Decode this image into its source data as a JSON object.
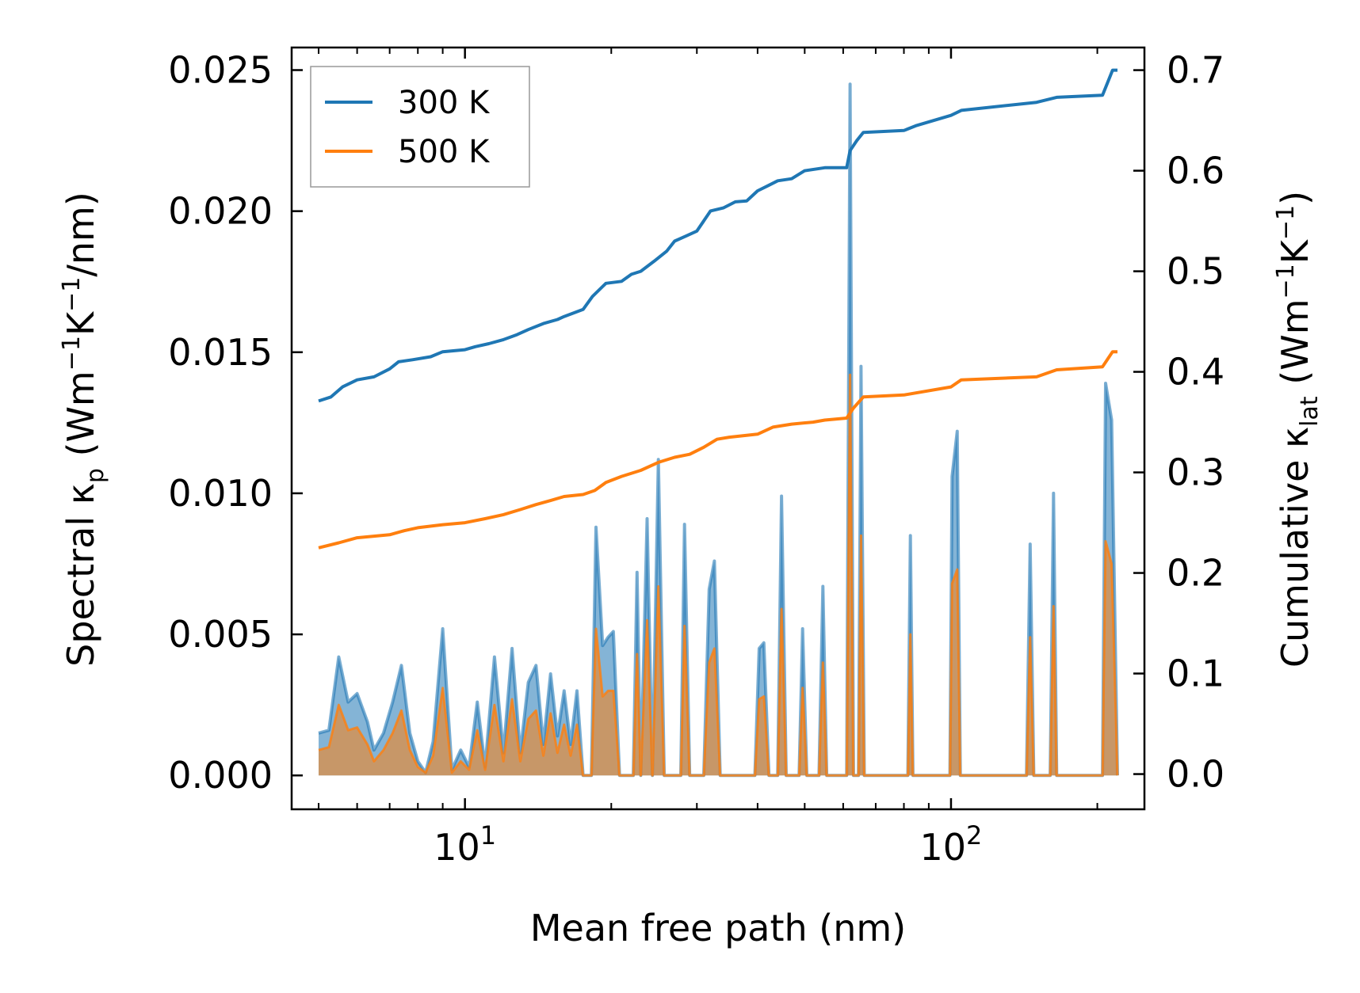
{
  "chart_data": {
    "type": "line",
    "xlabel": "Mean free path (nm)",
    "x_scale": "log",
    "xlim": [
      4.4,
      250
    ],
    "x_major_ticks": [
      {
        "value": 10,
        "base": "10",
        "exp": "1"
      },
      {
        "value": 100,
        "base": "10",
        "exp": "2"
      }
    ],
    "ylabel_left": {
      "main": "Spectral κ",
      "sub": "p",
      "rest1": " (Wm",
      "sup1": "−1",
      "rest2": "K",
      "sup2": "−1",
      "rest3": "/nm)"
    },
    "ylim_left": [
      -0.0012,
      0.0258
    ],
    "yticks_left": [
      "0.000",
      "0.005",
      "0.010",
      "0.015",
      "0.020",
      "0.025"
    ],
    "ylabel_right": {
      "main": "Cumulative κ",
      "sub": "lat",
      "rest1": " (Wm",
      "sup1": "−1",
      "rest2": "K",
      "sup2": "−1",
      "rest3": ")"
    },
    "ylim_right": [
      -0.035,
      0.7225
    ],
    "yticks_right": [
      "0.0",
      "0.1",
      "0.2",
      "0.3",
      "0.4",
      "0.5",
      "0.6",
      "0.7"
    ],
    "legend": {
      "position": "top-left",
      "entries": [
        {
          "label": "300 K",
          "color": "#1f77b4"
        },
        {
          "label": "500 K",
          "color": "#ff7f0e"
        }
      ]
    },
    "series": [
      {
        "name": "300 K",
        "color": "#1f77b4",
        "cumulative": [
          [
            5.0,
            0.371
          ],
          [
            5.3,
            0.375
          ],
          [
            5.6,
            0.385
          ],
          [
            6.0,
            0.392
          ],
          [
            6.5,
            0.395
          ],
          [
            7.0,
            0.403
          ],
          [
            7.3,
            0.41
          ],
          [
            7.8,
            0.412
          ],
          [
            8.5,
            0.415
          ],
          [
            9.0,
            0.42
          ],
          [
            10.0,
            0.422
          ],
          [
            10.5,
            0.425
          ],
          [
            11.2,
            0.428
          ],
          [
            12.0,
            0.432
          ],
          [
            12.8,
            0.437
          ],
          [
            13.5,
            0.442
          ],
          [
            14.5,
            0.448
          ],
          [
            15.5,
            0.452
          ],
          [
            16.0,
            0.455
          ],
          [
            17.5,
            0.462
          ],
          [
            18.3,
            0.475
          ],
          [
            19.5,
            0.488
          ],
          [
            21.0,
            0.49
          ],
          [
            22.0,
            0.497
          ],
          [
            23.0,
            0.5
          ],
          [
            24.5,
            0.51
          ],
          [
            26.0,
            0.52
          ],
          [
            27.0,
            0.53
          ],
          [
            28.5,
            0.535
          ],
          [
            30.0,
            0.54
          ],
          [
            32.0,
            0.56
          ],
          [
            34.0,
            0.563
          ],
          [
            36.0,
            0.569
          ],
          [
            38.0,
            0.57
          ],
          [
            40.0,
            0.58
          ],
          [
            42.0,
            0.585
          ],
          [
            44.0,
            0.59
          ],
          [
            47.0,
            0.592
          ],
          [
            50.0,
            0.6
          ],
          [
            55.0,
            0.603
          ],
          [
            61.0,
            0.603
          ],
          [
            62.0,
            0.62
          ],
          [
            64.0,
            0.63
          ],
          [
            66.0,
            0.638
          ],
          [
            80.0,
            0.64
          ],
          [
            85.0,
            0.645
          ],
          [
            100.0,
            0.655
          ],
          [
            105.0,
            0.66
          ],
          [
            150.0,
            0.668
          ],
          [
            165.0,
            0.673
          ],
          [
            205.0,
            0.675
          ],
          [
            215.0,
            0.7
          ],
          [
            220.0,
            0.7
          ]
        ]
      },
      {
        "name": "500 K",
        "color": "#ff7f0e",
        "cumulative": [
          [
            5.0,
            0.225
          ],
          [
            5.5,
            0.23
          ],
          [
            6.0,
            0.235
          ],
          [
            7.0,
            0.238
          ],
          [
            7.5,
            0.242
          ],
          [
            8.0,
            0.245
          ],
          [
            9.0,
            0.248
          ],
          [
            10.0,
            0.25
          ],
          [
            11.0,
            0.254
          ],
          [
            12.0,
            0.258
          ],
          [
            13.0,
            0.263
          ],
          [
            14.0,
            0.268
          ],
          [
            15.0,
            0.272
          ],
          [
            16.0,
            0.276
          ],
          [
            17.5,
            0.278
          ],
          [
            18.5,
            0.282
          ],
          [
            19.5,
            0.29
          ],
          [
            21.0,
            0.296
          ],
          [
            23.0,
            0.302
          ],
          [
            25.0,
            0.31
          ],
          [
            27.0,
            0.315
          ],
          [
            29.0,
            0.318
          ],
          [
            31.0,
            0.325
          ],
          [
            33.0,
            0.333
          ],
          [
            35.0,
            0.335
          ],
          [
            40.0,
            0.338
          ],
          [
            43.0,
            0.345
          ],
          [
            47.0,
            0.348
          ],
          [
            52.0,
            0.35
          ],
          [
            55.0,
            0.352
          ],
          [
            61.0,
            0.354
          ],
          [
            63.0,
            0.364
          ],
          [
            66.0,
            0.375
          ],
          [
            80.0,
            0.377
          ],
          [
            100.0,
            0.385
          ],
          [
            105.0,
            0.392
          ],
          [
            150.0,
            0.395
          ],
          [
            165.0,
            0.402
          ],
          [
            205.0,
            0.405
          ],
          [
            215.0,
            0.42
          ],
          [
            220.0,
            0.42
          ]
        ]
      }
    ],
    "spectral": [
      [
        5.0,
        0.0015,
        0.0009
      ],
      [
        5.25,
        0.0016,
        0.001
      ],
      [
        5.5,
        0.0042,
        0.0025
      ],
      [
        5.75,
        0.0026,
        0.0016
      ],
      [
        6.0,
        0.0029,
        0.0017
      ],
      [
        6.3,
        0.0019,
        0.0011
      ],
      [
        6.5,
        0.0009,
        0.0005
      ],
      [
        6.8,
        0.0015,
        0.0009
      ],
      [
        7.1,
        0.0026,
        0.0015
      ],
      [
        7.4,
        0.0039,
        0.0023
      ],
      [
        7.7,
        0.0015,
        0.0009
      ],
      [
        8.0,
        0.0005,
        0.0003
      ],
      [
        8.3,
        0.0001,
        0.0001
      ],
      [
        8.6,
        0.0012,
        0.0007
      ],
      [
        9.0,
        0.0052,
        0.0031
      ],
      [
        9.4,
        0.0002,
        0.0001
      ],
      [
        9.8,
        0.0009,
        0.0005
      ],
      [
        10.2,
        0.0003,
        0.0002
      ],
      [
        10.6,
        0.0026,
        0.0016
      ],
      [
        11.0,
        0.0003,
        0.0002
      ],
      [
        11.5,
        0.0042,
        0.0025
      ],
      [
        12.0,
        0.0008,
        0.0005
      ],
      [
        12.5,
        0.0045,
        0.0027
      ],
      [
        13.0,
        0.0008,
        0.0005
      ],
      [
        13.5,
        0.0033,
        0.002
      ],
      [
        14.0,
        0.0039,
        0.0023
      ],
      [
        14.5,
        0.0011,
        0.0007
      ],
      [
        15.0,
        0.0036,
        0.0022
      ],
      [
        15.5,
        0.0014,
        0.0008
      ],
      [
        16.0,
        0.003,
        0.0018
      ],
      [
        16.5,
        0.0011,
        0.0007
      ],
      [
        17.0,
        0.003,
        0.0018
      ],
      [
        17.5,
        0.0,
        0.0
      ],
      [
        18.2,
        0.0,
        0.0
      ],
      [
        18.6,
        0.0088,
        0.0052
      ],
      [
        19.2,
        0.0046,
        0.0028
      ],
      [
        19.7,
        0.0049,
        0.003
      ],
      [
        20.2,
        0.0051,
        0.003
      ],
      [
        20.8,
        0.0,
        0.0
      ],
      [
        22.2,
        0.0,
        0.0
      ],
      [
        22.6,
        0.0072,
        0.0043
      ],
      [
        23.0,
        0.0,
        0.0
      ],
      [
        23.7,
        0.0091,
        0.0055
      ],
      [
        24.3,
        0.0,
        0.0
      ],
      [
        25.0,
        0.0112,
        0.0067
      ],
      [
        25.7,
        0.0,
        0.0
      ],
      [
        27.8,
        0.0,
        0.0
      ],
      [
        28.3,
        0.0089,
        0.0053
      ],
      [
        29.0,
        0.0,
        0.0
      ],
      [
        31.0,
        0.0,
        0.0
      ],
      [
        31.8,
        0.0066,
        0.004
      ],
      [
        32.6,
        0.0076,
        0.0045
      ],
      [
        33.5,
        0.0,
        0.0
      ],
      [
        39.5,
        0.0,
        0.0
      ],
      [
        40.3,
        0.0045,
        0.0027
      ],
      [
        41.2,
        0.0047,
        0.0028
      ],
      [
        42.2,
        0.0,
        0.0
      ],
      [
        44.0,
        0.0,
        0.0
      ],
      [
        44.8,
        0.0099,
        0.0059
      ],
      [
        45.8,
        0.0,
        0.0
      ],
      [
        48.7,
        0.0,
        0.0
      ],
      [
        49.5,
        0.0052,
        0.0031
      ],
      [
        50.5,
        0.0,
        0.0
      ],
      [
        53.5,
        0.0,
        0.0
      ],
      [
        54.5,
        0.0067,
        0.004
      ],
      [
        55.5,
        0.0,
        0.0
      ],
      [
        61.0,
        0.0,
        0.0
      ],
      [
        62.0,
        0.0245,
        0.0142
      ],
      [
        63.0,
        0.0,
        0.0
      ],
      [
        64.5,
        0.0,
        0.0
      ],
      [
        65.3,
        0.0145,
        0.0085
      ],
      [
        66.3,
        0.0,
        0.0
      ],
      [
        81.5,
        0.0,
        0.0
      ],
      [
        82.5,
        0.0085,
        0.005
      ],
      [
        83.5,
        0.0,
        0.0
      ],
      [
        99.5,
        0.0,
        0.0
      ],
      [
        100.5,
        0.0106,
        0.0068
      ],
      [
        103.0,
        0.0122,
        0.0073
      ],
      [
        104.5,
        0.0,
        0.0
      ],
      [
        143.0,
        0.0,
        0.0
      ],
      [
        145.5,
        0.0082,
        0.0049
      ],
      [
        148.0,
        0.0,
        0.0
      ],
      [
        160.0,
        0.0,
        0.0
      ],
      [
        162.5,
        0.01,
        0.006
      ],
      [
        165.0,
        0.0,
        0.0
      ],
      [
        205.0,
        0.0,
        0.0
      ],
      [
        208.0,
        0.0139,
        0.0083
      ],
      [
        214.0,
        0.0126,
        0.0075
      ],
      [
        220.0,
        0.0,
        0.0
      ]
    ]
  }
}
